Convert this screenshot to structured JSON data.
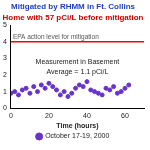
{
  "chart_data": {
    "type": "scatter",
    "title": "Mitigated by RHMM in Ft. Collins",
    "subtitle": "Home with 57 pCi/L before mitigation",
    "x_label": "Time (hours)",
    "annotations": [
      "Measurement in Basement",
      "Average = 1.1 pCi/L"
    ],
    "reference_lines": [
      {
        "y": 4,
        "label": "EPA action level for mitigation",
        "color": "#ff0000"
      }
    ],
    "series": [
      {
        "name": "October 17-19, 2000",
        "color": "#6633cc",
        "marker": "circle",
        "x": [
          0,
          2,
          4,
          6,
          8,
          10,
          12,
          14,
          16,
          18,
          20,
          22,
          24,
          26,
          28,
          30,
          32,
          34,
          36,
          38,
          40,
          42,
          44,
          46,
          48,
          50,
          52,
          54,
          56,
          58,
          60,
          62
        ],
        "values": [
          0.9,
          1.0,
          0.8,
          1.1,
          1.2,
          0.9,
          1.3,
          1.0,
          1.4,
          1.2,
          1.5,
          1.3,
          1.1,
          0.8,
          1.0,
          0.7,
          0.9,
          1.2,
          1.4,
          1.3,
          1.6,
          1.1,
          1.0,
          0.9,
          0.8,
          1.2,
          1.1,
          1.3,
          0.9,
          1.0,
          1.2,
          1.4
        ]
      }
    ],
    "xlim": [
      0,
      70
    ],
    "xticks": [
      0,
      20,
      40,
      60
    ],
    "ylim": [
      0,
      5
    ],
    "yticks": [
      0,
      1,
      2,
      3,
      4,
      5
    ],
    "grid": false,
    "legend": "bottom"
  }
}
